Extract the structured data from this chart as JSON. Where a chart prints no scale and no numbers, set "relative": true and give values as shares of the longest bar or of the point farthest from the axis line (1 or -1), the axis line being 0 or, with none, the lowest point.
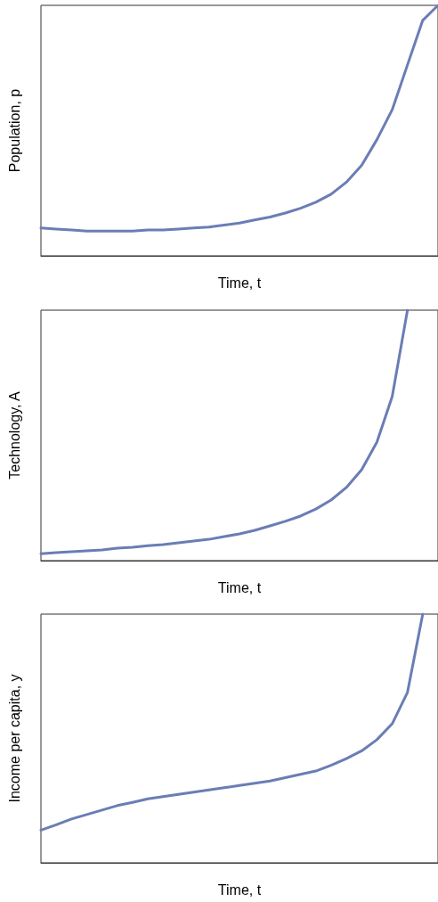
{
  "chart_data": [
    {
      "type": "line",
      "xlabel": "Time, t",
      "ylabel": "Population, p",
      "relative": true,
      "marker": "none",
      "line_style": "solid",
      "grid": false,
      "categories": [
        null,
        null,
        null,
        null,
        null,
        null,
        null,
        null,
        null,
        null,
        null,
        null,
        null,
        null,
        null,
        null,
        null,
        null,
        null,
        null,
        null,
        null,
        null,
        null,
        null,
        null,
        null
      ],
      "series": [
        {
          "color": "#6a7db5",
          "values": [
            0.111,
            0.107,
            0.103,
            0.099,
            0.099,
            0.099,
            0.099,
            0.103,
            0.103,
            0.107,
            0.111,
            0.115,
            0.123,
            0.131,
            0.143,
            0.155,
            0.171,
            0.19,
            0.214,
            0.246,
            0.294,
            0.361,
            0.464,
            0.583,
            0.762,
            0.94,
            1
          ]
        }
      ]
    },
    {
      "type": "line",
      "xlabel": "Time, t",
      "ylabel": "Technology, A",
      "relative": true,
      "marker": "none",
      "line_style": "solid",
      "grid": false,
      "categories": [
        null,
        null,
        null,
        null,
        null,
        null,
        null,
        null,
        null,
        null,
        null,
        null,
        null,
        null,
        null,
        null,
        null,
        null,
        null,
        null,
        null,
        null,
        null,
        null,
        null,
        null,
        null
      ],
      "series": [
        {
          "color": "#6a7db5",
          "values": [
            0.028,
            0.032,
            0.036,
            0.039,
            0.043,
            0.05,
            0.053,
            0.06,
            0.064,
            0.071,
            0.078,
            0.085,
            0.096,
            0.107,
            0.121,
            0.139,
            0.157,
            0.178,
            0.206,
            0.242,
            0.292,
            0.363,
            0.473,
            0.655,
            1,
            null,
            null
          ]
        }
      ]
    },
    {
      "type": "line",
      "xlabel": "Time, t",
      "ylabel": "Income per capita, y",
      "relative": true,
      "marker": "none",
      "line_style": "solid",
      "grid": false,
      "categories": [
        null,
        null,
        null,
        null,
        null,
        null,
        null,
        null,
        null,
        null,
        null,
        null,
        null,
        null,
        null,
        null,
        null,
        null,
        null,
        null,
        null,
        null,
        null,
        null,
        null,
        null,
        null
      ],
      "series": [
        {
          "color": "#6a7db5",
          "values": [
            0.131,
            0.153,
            0.176,
            0.194,
            0.212,
            0.23,
            0.243,
            0.257,
            0.266,
            0.275,
            0.284,
            0.293,
            0.302,
            0.311,
            0.32,
            0.329,
            0.342,
            0.356,
            0.369,
            0.392,
            0.419,
            0.45,
            0.495,
            0.559,
            0.685,
            1,
            null
          ]
        }
      ]
    }
  ]
}
